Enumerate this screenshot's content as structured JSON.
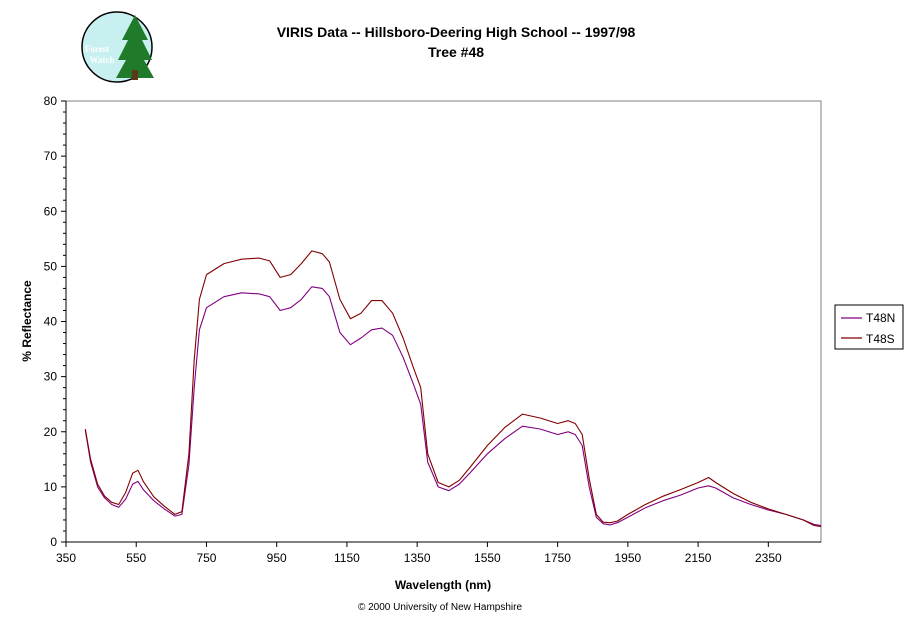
{
  "logo": {
    "line1": "Forest",
    "line2": "Watch"
  },
  "copyright": "© 2000 University of New Hampshire",
  "colors": {
    "T48N": "#800080",
    "T48S": "#800000",
    "logo_bg": "#c8f0f0",
    "logo_tree": "#1f7a2a"
  },
  "chart_data": {
    "type": "line",
    "title": "VIRIS Data -- Hillsboro-Deering High School -- 1997/98",
    "subtitle": "Tree #48",
    "xlabel": "Wavelength (nm)",
    "ylabel": "% Reflectance",
    "xlim": [
      350,
      2500
    ],
    "ylim": [
      0,
      80
    ],
    "xticks": [
      350,
      550,
      750,
      950,
      1150,
      1350,
      1550,
      1750,
      1950,
      2150,
      2350
    ],
    "yticks": [
      0,
      10,
      20,
      30,
      40,
      50,
      60,
      70,
      80
    ],
    "grid": false,
    "legend_position": "right",
    "x": [
      405,
      420,
      440,
      460,
      480,
      500,
      520,
      540,
      555,
      570,
      600,
      630,
      660,
      680,
      700,
      715,
      730,
      750,
      800,
      850,
      900,
      930,
      960,
      990,
      1020,
      1050,
      1080,
      1100,
      1130,
      1160,
      1190,
      1220,
      1250,
      1280,
      1310,
      1340,
      1360,
      1380,
      1410,
      1440,
      1470,
      1500,
      1550,
      1600,
      1650,
      1700,
      1750,
      1780,
      1800,
      1820,
      1840,
      1860,
      1880,
      1900,
      1920,
      1950,
      2000,
      2050,
      2100,
      2150,
      2180,
      2200,
      2250,
      2300,
      2350,
      2400,
      2450,
      2480,
      2500
    ],
    "series": [
      {
        "name": "T48N",
        "values": [
          20.3,
          14.5,
          10.0,
          8.0,
          6.8,
          6.3,
          7.8,
          10.5,
          11.0,
          9.5,
          7.5,
          6.0,
          4.7,
          5.0,
          14.0,
          28.0,
          38.5,
          42.5,
          44.5,
          45.2,
          45.0,
          44.5,
          42.0,
          42.5,
          44.0,
          46.3,
          46.0,
          44.5,
          38.0,
          35.8,
          37.0,
          38.5,
          38.8,
          37.5,
          33.5,
          28.5,
          25.0,
          14.5,
          10.0,
          9.3,
          10.5,
          12.5,
          16.0,
          18.8,
          21.0,
          20.5,
          19.5,
          20.0,
          19.5,
          17.5,
          10.0,
          4.5,
          3.3,
          3.1,
          3.5,
          4.5,
          6.2,
          7.5,
          8.5,
          9.8,
          10.2,
          9.8,
          8.0,
          6.8,
          5.8,
          5.0,
          4.0,
          3.2,
          3.0
        ]
      },
      {
        "name": "T48S",
        "values": [
          20.5,
          15.0,
          10.5,
          8.3,
          7.2,
          6.8,
          9.0,
          12.5,
          13.0,
          11.0,
          8.2,
          6.5,
          5.0,
          5.5,
          16.0,
          33.0,
          44.0,
          48.5,
          50.5,
          51.3,
          51.5,
          51.0,
          48.0,
          48.5,
          50.5,
          52.8,
          52.3,
          50.8,
          44.0,
          40.5,
          41.5,
          43.8,
          43.8,
          41.5,
          37.0,
          31.5,
          28.0,
          16.0,
          10.8,
          10.0,
          11.2,
          13.5,
          17.5,
          20.8,
          23.2,
          22.5,
          21.5,
          22.0,
          21.5,
          19.5,
          11.5,
          5.0,
          3.6,
          3.5,
          3.8,
          5.0,
          6.8,
          8.3,
          9.5,
          10.8,
          11.7,
          10.8,
          8.8,
          7.2,
          6.0,
          5.0,
          4.0,
          3.0,
          2.8
        ]
      }
    ]
  }
}
